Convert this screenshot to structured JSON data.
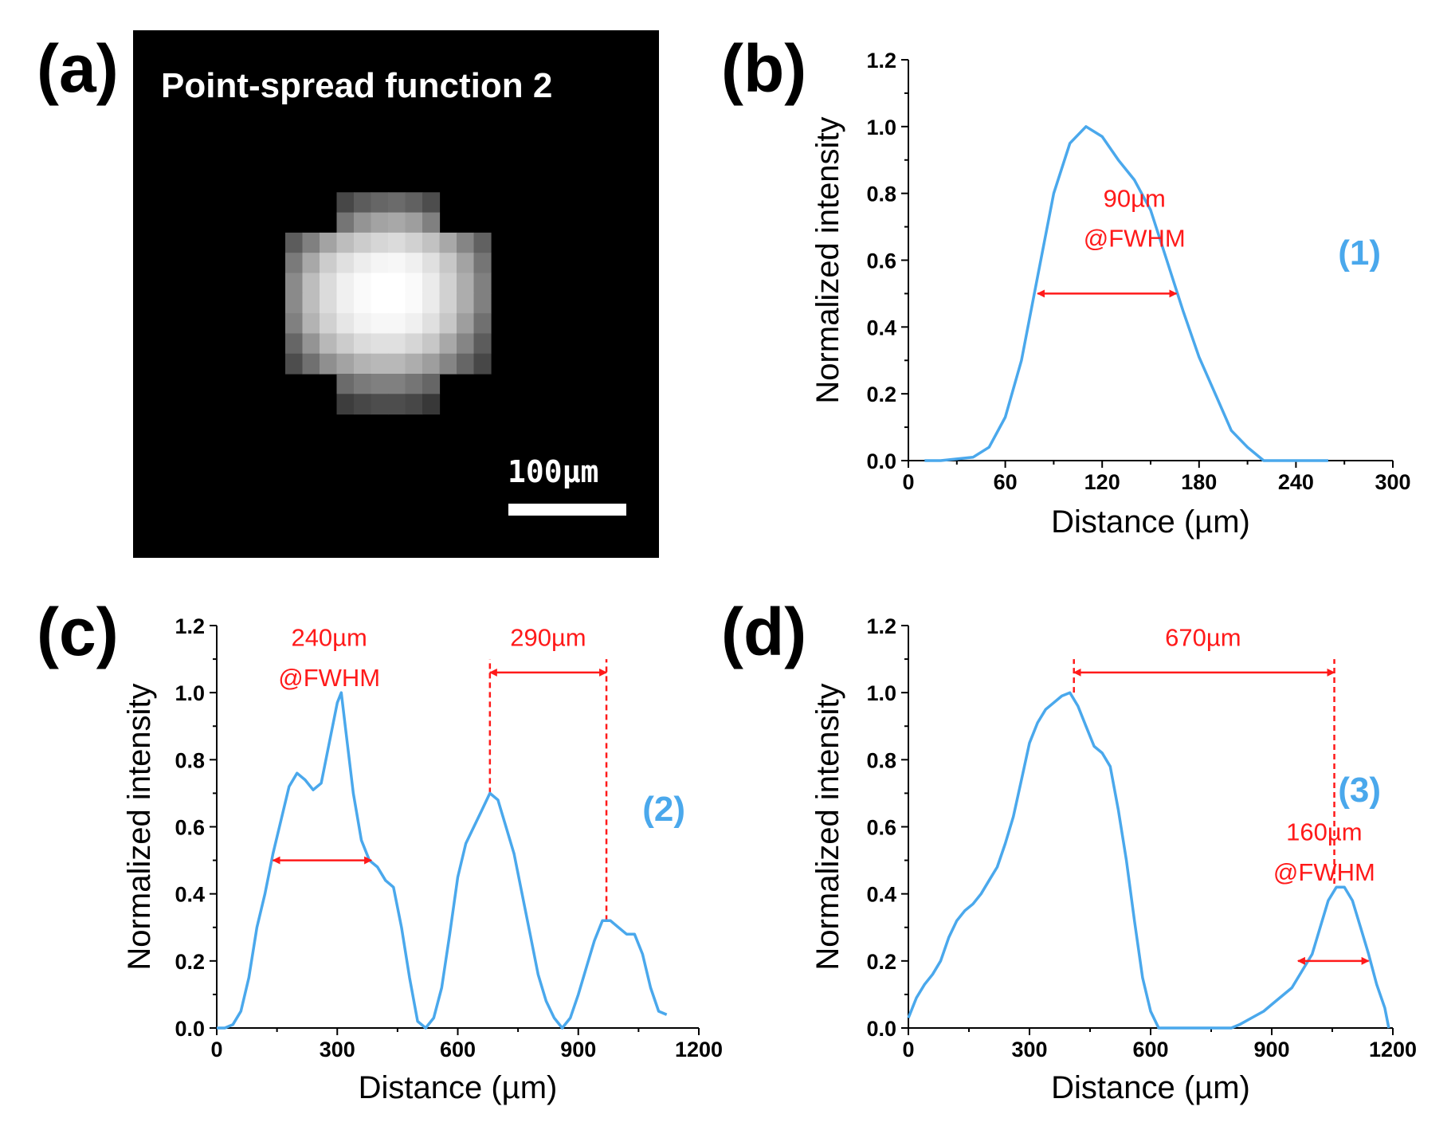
{
  "panel_a": {
    "letter": "(a)",
    "title": "Point-spread function 2",
    "scale_bar": "100µm",
    "intensity_grid": [
      [
        0,
        0,
        0,
        0,
        0,
        0,
        0,
        0,
        0,
        0,
        0,
        0,
        0
      ],
      [
        0,
        0,
        0,
        0.28,
        0.36,
        0.4,
        0.42,
        0.38,
        0.3,
        0,
        0,
        0,
        0
      ],
      [
        0,
        0,
        0,
        0.46,
        0.58,
        0.64,
        0.66,
        0.62,
        0.5,
        0,
        0,
        0,
        0
      ],
      [
        0.36,
        0.5,
        0.64,
        0.74,
        0.8,
        0.84,
        0.86,
        0.82,
        0.76,
        0.66,
        0.52,
        0.38,
        0
      ],
      [
        0.48,
        0.66,
        0.8,
        0.88,
        0.93,
        0.96,
        0.97,
        0.94,
        0.88,
        0.78,
        0.64,
        0.46,
        0
      ],
      [
        0.54,
        0.74,
        0.86,
        0.94,
        0.98,
        1.0,
        1.0,
        0.98,
        0.92,
        0.82,
        0.68,
        0.5,
        0
      ],
      [
        0.54,
        0.74,
        0.86,
        0.94,
        0.98,
        1.0,
        1.0,
        0.98,
        0.92,
        0.82,
        0.68,
        0.5,
        0
      ],
      [
        0.5,
        0.7,
        0.82,
        0.9,
        0.95,
        0.97,
        0.97,
        0.94,
        0.88,
        0.78,
        0.62,
        0.44,
        0
      ],
      [
        0.4,
        0.58,
        0.72,
        0.8,
        0.86,
        0.88,
        0.88,
        0.84,
        0.78,
        0.66,
        0.52,
        0.36,
        0
      ],
      [
        0.3,
        0.44,
        0.56,
        0.64,
        0.7,
        0.72,
        0.72,
        0.68,
        0.62,
        0.52,
        0.4,
        0.28,
        0
      ],
      [
        0,
        0,
        0,
        0.42,
        0.48,
        0.5,
        0.5,
        0.46,
        0.4,
        0,
        0,
        0,
        0
      ],
      [
        0,
        0,
        0,
        0.24,
        0.28,
        0.3,
        0.3,
        0.28,
        0.22,
        0,
        0,
        0,
        0
      ]
    ]
  },
  "chart_data": [
    {
      "panel": "(b)",
      "type": "line",
      "xlabel": "Distance (µm)",
      "ylabel": "Normalized intensity",
      "xlim": [
        0,
        300
      ],
      "ylim": [
        0,
        1.2
      ],
      "xticks": [
        0,
        60,
        120,
        180,
        240,
        300
      ],
      "yticks": [
        0.0,
        0.2,
        0.4,
        0.6,
        0.8,
        1.0,
        1.2
      ],
      "xtick_labels": [
        "0",
        "60",
        "120",
        "180",
        "240",
        "300"
      ],
      "ytick_labels": [
        "0.0",
        "0.2",
        "0.4",
        "0.6",
        "0.8",
        "1.0",
        "1.2"
      ],
      "series_label": "(1)",
      "color": "#4aa8ec",
      "series": [
        {
          "name": "(1)",
          "x": [
            10,
            20,
            30,
            40,
            50,
            60,
            70,
            80,
            90,
            100,
            110,
            120,
            130,
            140,
            150,
            160,
            170,
            180,
            190,
            200,
            210,
            220,
            240,
            260
          ],
          "y": [
            0,
            0,
            0.005,
            0.01,
            0.04,
            0.13,
            0.3,
            0.55,
            0.8,
            0.95,
            1.0,
            0.97,
            0.9,
            0.84,
            0.75,
            0.6,
            0.45,
            0.31,
            0.2,
            0.09,
            0.04,
            0.0,
            0.0,
            0.0
          ]
        }
      ],
      "annotations": [
        {
          "text": "90µm",
          "x": 140,
          "y": 0.76
        },
        {
          "text": "@FWHM",
          "x": 140,
          "y": 0.64
        }
      ],
      "arrows": [
        {
          "x1": 80,
          "x2": 166,
          "y": 0.5
        }
      ],
      "vlines": []
    },
    {
      "panel": "(c)",
      "type": "line",
      "xlabel": "Distance (µm)",
      "ylabel": "Normalized intensity",
      "xlim": [
        0,
        1200
      ],
      "ylim": [
        0,
        1.2
      ],
      "xticks": [
        0,
        300,
        600,
        900,
        1200
      ],
      "yticks": [
        0.0,
        0.2,
        0.4,
        0.6,
        0.8,
        1.0,
        1.2
      ],
      "xtick_labels": [
        "0",
        "300",
        "600",
        "900",
        "1200"
      ],
      "ytick_labels": [
        "0.0",
        "0.2",
        "0.4",
        "0.6",
        "0.8",
        "1.0",
        "1.2"
      ],
      "series_label": "(2)",
      "color": "#4aa8ec",
      "series": [
        {
          "name": "(2)",
          "x": [
            0,
            20,
            40,
            60,
            80,
            100,
            120,
            140,
            160,
            180,
            200,
            220,
            240,
            260,
            280,
            300,
            310,
            320,
            340,
            360,
            380,
            400,
            420,
            440,
            460,
            480,
            500,
            520,
            540,
            560,
            580,
            600,
            620,
            640,
            660,
            680,
            700,
            720,
            740,
            760,
            780,
            800,
            820,
            840,
            860,
            880,
            900,
            920,
            940,
            960,
            980,
            1000,
            1020,
            1040,
            1060,
            1080,
            1100,
            1120
          ],
          "y": [
            0,
            0,
            0.01,
            0.05,
            0.15,
            0.3,
            0.4,
            0.52,
            0.62,
            0.72,
            0.76,
            0.74,
            0.71,
            0.73,
            0.85,
            0.97,
            1.0,
            0.9,
            0.7,
            0.56,
            0.5,
            0.48,
            0.44,
            0.42,
            0.3,
            0.15,
            0.02,
            0.0,
            0.03,
            0.12,
            0.28,
            0.45,
            0.55,
            0.6,
            0.65,
            0.7,
            0.68,
            0.6,
            0.52,
            0.4,
            0.28,
            0.16,
            0.08,
            0.03,
            0.0,
            0.03,
            0.1,
            0.18,
            0.26,
            0.32,
            0.32,
            0.3,
            0.28,
            0.28,
            0.22,
            0.12,
            0.05,
            0.04
          ]
        }
      ],
      "annotations": [
        {
          "text": "240µm",
          "x": 280,
          "y": 1.14
        },
        {
          "text": "@FWHM",
          "x": 280,
          "y": 1.02
        },
        {
          "text": "290µm",
          "x": 825,
          "y": 1.14
        }
      ],
      "arrows": [
        {
          "x1": 140,
          "x2": 385,
          "y": 0.5
        },
        {
          "x1": 680,
          "x2": 970,
          "y": 1.06
        }
      ],
      "vlines": [
        {
          "x": 680,
          "y0": 0.7,
          "y1": 1.1
        },
        {
          "x": 970,
          "y0": 0.32,
          "y1": 1.1
        }
      ]
    },
    {
      "panel": "(d)",
      "type": "line",
      "xlabel": "Distance (µm)",
      "ylabel": "Normalized intensity",
      "xlim": [
        0,
        1200
      ],
      "ylim": [
        0,
        1.2
      ],
      "xticks": [
        0,
        300,
        600,
        900,
        1200
      ],
      "yticks": [
        0.0,
        0.2,
        0.4,
        0.6,
        0.8,
        1.0,
        1.2
      ],
      "xtick_labels": [
        "0",
        "300",
        "600",
        "900",
        "1200"
      ],
      "ytick_labels": [
        "0.0",
        "0.2",
        "0.4",
        "0.6",
        "0.8",
        "1.0",
        "1.2"
      ],
      "series_label": "(3)",
      "color": "#4aa8ec",
      "series": [
        {
          "name": "(3)",
          "x": [
            0,
            20,
            40,
            60,
            80,
            100,
            120,
            140,
            160,
            180,
            200,
            220,
            240,
            260,
            280,
            300,
            320,
            340,
            360,
            380,
            400,
            420,
            440,
            460,
            480,
            500,
            520,
            540,
            560,
            580,
            600,
            620,
            640,
            660,
            680,
            700,
            750,
            800,
            820,
            850,
            880,
            900,
            950,
            1000,
            1020,
            1040,
            1060,
            1080,
            1100,
            1120,
            1140,
            1160,
            1180,
            1190
          ],
          "y": [
            0.03,
            0.09,
            0.13,
            0.16,
            0.2,
            0.27,
            0.32,
            0.35,
            0.37,
            0.4,
            0.44,
            0.48,
            0.55,
            0.63,
            0.74,
            0.85,
            0.91,
            0.95,
            0.97,
            0.99,
            1.0,
            0.96,
            0.9,
            0.84,
            0.82,
            0.78,
            0.65,
            0.5,
            0.32,
            0.15,
            0.05,
            0.0,
            0.0,
            0.0,
            0.0,
            0.0,
            0.0,
            0.0,
            0.01,
            0.03,
            0.05,
            0.07,
            0.12,
            0.22,
            0.3,
            0.38,
            0.42,
            0.42,
            0.38,
            0.3,
            0.22,
            0.13,
            0.06,
            0.0
          ]
        }
      ],
      "annotations": [
        {
          "text": "670µm",
          "x": 730,
          "y": 1.14
        },
        {
          "text": "160µm",
          "x": 1030,
          "y": 0.56
        },
        {
          "text": "@FWHM",
          "x": 1030,
          "y": 0.44
        }
      ],
      "arrows": [
        {
          "x1": 410,
          "x2": 1055,
          "y": 1.06
        },
        {
          "x1": 965,
          "x2": 1140,
          "y": 0.2
        }
      ],
      "vlines": [
        {
          "x": 410,
          "y0": 1.0,
          "y1": 1.1
        },
        {
          "x": 1055,
          "y0": 0.43,
          "y1": 1.1
        }
      ]
    }
  ]
}
